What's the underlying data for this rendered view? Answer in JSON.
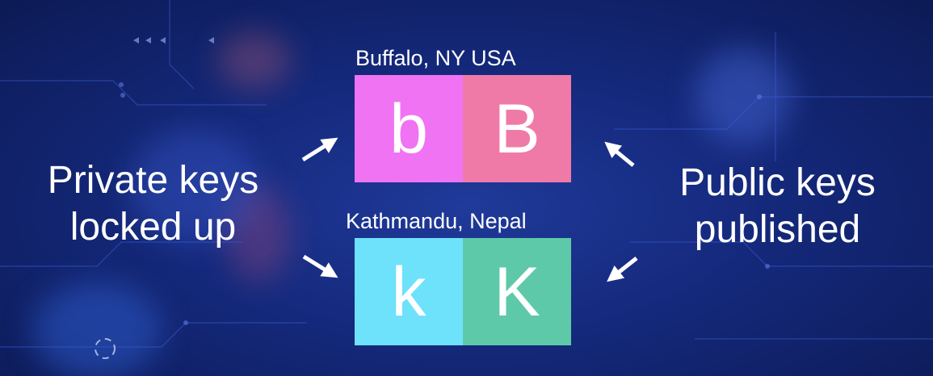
{
  "diagram": {
    "top_label": "Buffalo, NY USA",
    "bottom_label": "Kathmandu, Nepal",
    "cells": {
      "top_left": {
        "letter": "b",
        "color": "#f073f4"
      },
      "top_right": {
        "letter": "B",
        "color": "#ef7aa8"
      },
      "bottom_left": {
        "letter": "k",
        "color": "#6ee1fb"
      },
      "bottom_right": {
        "letter": "K",
        "color": "#5ec9a8"
      }
    },
    "left_caption": {
      "line1": "Private keys",
      "line2": "locked up"
    },
    "right_caption": {
      "line1": "Public keys",
      "line2": "published"
    }
  }
}
